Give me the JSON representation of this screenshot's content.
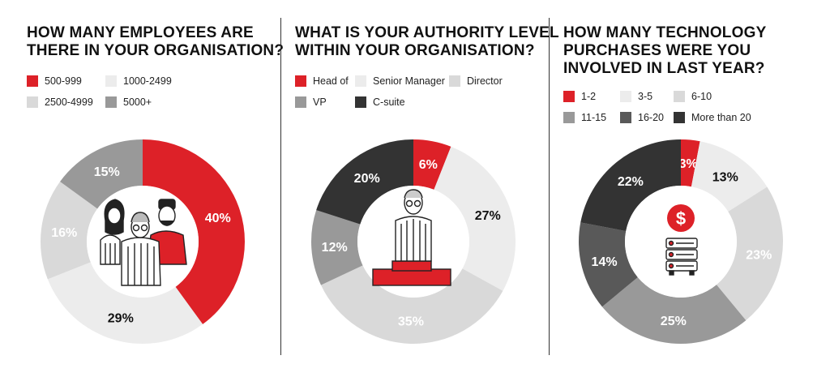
{
  "colors": {
    "red": "#dd2128",
    "lightest": "#ececec",
    "light": "#d9d9d9",
    "mid": "#999999",
    "dark": "#595959",
    "darkest": "#333333"
  },
  "chart_data": [
    {
      "type": "pie",
      "title_lines": [
        "HOW MANY EMPLOYEES ARE",
        "THERE IN YOUR ORGANISATION?"
      ],
      "categories": [
        "500-999",
        "1000-2499",
        "2500-4999",
        "5000+"
      ],
      "values": [
        40,
        29,
        16,
        15
      ],
      "labels": [
        "40%",
        "29%",
        "16%",
        "15%"
      ],
      "colors": [
        "#dd2128",
        "#ececec",
        "#d9d9d9",
        "#999999"
      ],
      "label_colors": [
        "#ffffff",
        "#111111",
        "#ffffff",
        "#ffffff"
      ],
      "legend_position": "top-left"
    },
    {
      "type": "pie",
      "title_lines": [
        "WHAT IS YOUR AUTHORITY LEVEL",
        "WITHIN YOUR ORGANISATION?"
      ],
      "categories": [
        "Head of",
        "Senior Manager",
        "Director",
        "VP",
        "C-suite"
      ],
      "values": [
        6,
        27,
        35,
        12,
        20
      ],
      "labels": [
        "6%",
        "27%",
        "35%",
        "12%",
        "20%"
      ],
      "colors": [
        "#dd2128",
        "#ececec",
        "#d9d9d9",
        "#999999",
        "#333333"
      ],
      "label_colors": [
        "#ffffff",
        "#111111",
        "#ffffff",
        "#ffffff",
        "#ffffff"
      ],
      "legend_position": "top-left"
    },
    {
      "type": "pie",
      "title_lines": [
        "HOW MANY TECHNOLOGY",
        "PURCHASES WERE YOU",
        "INVOLVED IN LAST YEAR?"
      ],
      "categories": [
        "1-2",
        "3-5",
        "6-10",
        "11-15",
        "16-20",
        "More than 20"
      ],
      "values": [
        3,
        13,
        23,
        25,
        14,
        22
      ],
      "labels": [
        "3%",
        "13%",
        "23%",
        "25%",
        "14%",
        "22%"
      ],
      "colors": [
        "#dd2128",
        "#ececec",
        "#d9d9d9",
        "#999999",
        "#595959",
        "#333333"
      ],
      "label_colors": [
        "#ffffff",
        "#111111",
        "#ffffff",
        "#ffffff",
        "#ffffff",
        "#ffffff"
      ],
      "legend_position": "top-left"
    }
  ],
  "icons": {
    "chart1_center": "people-group-icon",
    "chart2_center": "man-on-podium-icon",
    "chart3_center": "dollar-server-icon"
  },
  "dollar_symbol": "$"
}
